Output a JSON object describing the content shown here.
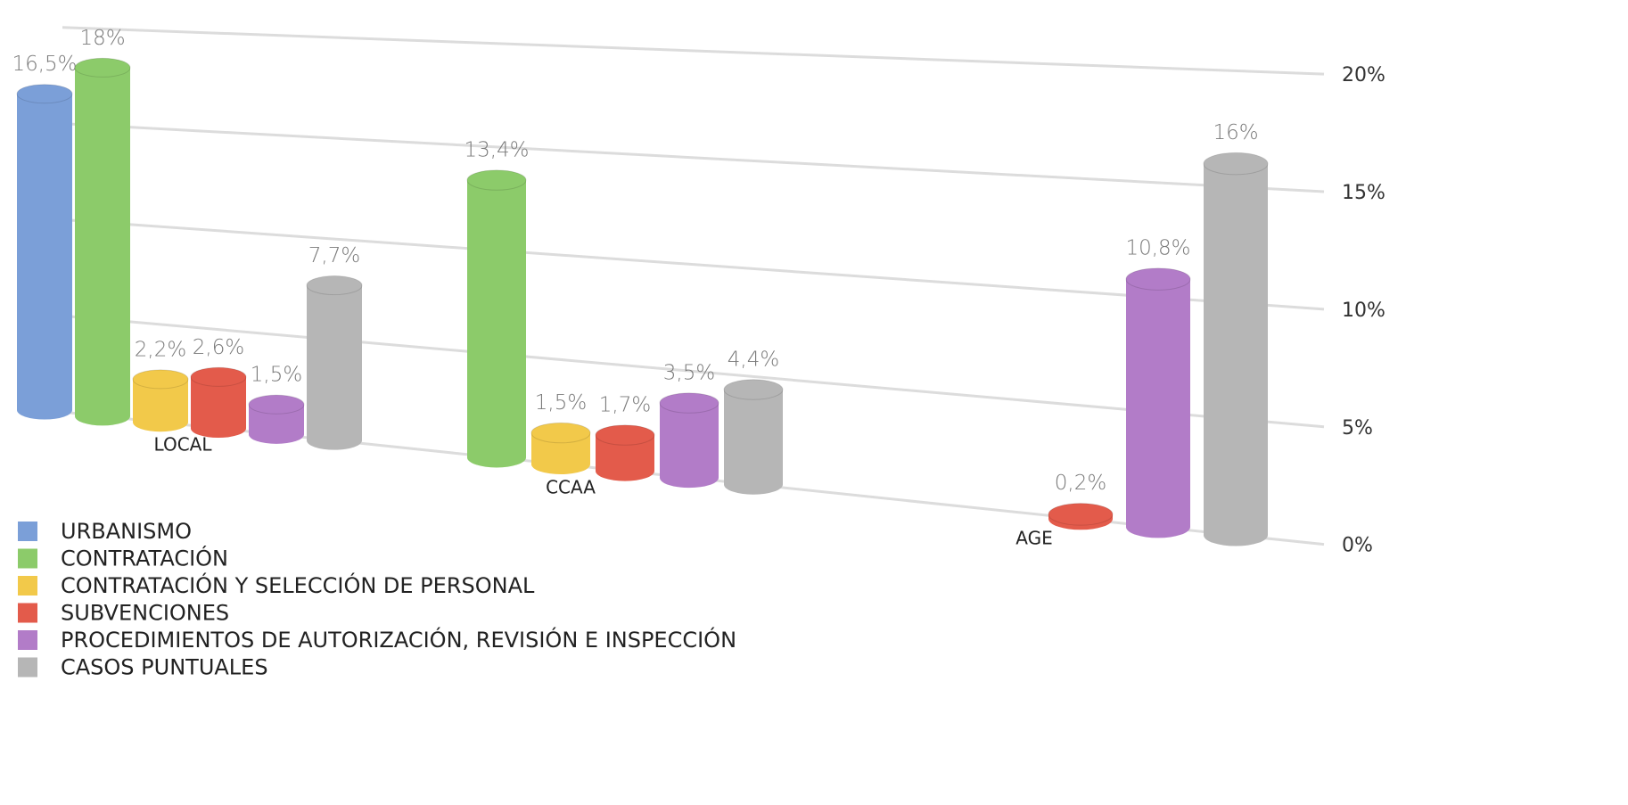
{
  "chart_data": {
    "type": "bar",
    "categories": [
      "LOCAL",
      "CCAA",
      "AGE"
    ],
    "series": [
      {
        "name": "URBANISMO",
        "color": "#7b9fd8",
        "values": [
          16.5,
          null,
          null
        ],
        "value_labels": [
          "16,5%",
          null,
          null
        ]
      },
      {
        "name": "CONTRATACIÓN",
        "color": "#8ccb6a",
        "values": [
          18,
          13.4,
          null
        ],
        "value_labels": [
          "18%",
          "13,4%",
          null
        ]
      },
      {
        "name": "CONTRATACIÓN Y SELECCIÓN DE PERSONAL",
        "color": "#f2c94a",
        "values": [
          2.2,
          1.5,
          null
        ],
        "value_labels": [
          "2,2%",
          "1,5%",
          null
        ]
      },
      {
        "name": "SUBVENCIONES",
        "color": "#e35b4b",
        "values": [
          2.6,
          1.7,
          0.2
        ],
        "value_labels": [
          "2,6%",
          "1,7%",
          "0,2%"
        ]
      },
      {
        "name": "PROCEDIMIENTOS DE AUTORIZACIÓN, REVISIÓN E INSPECCIÓN",
        "color": "#b27cc8",
        "values": [
          1.5,
          3.5,
          10.8
        ],
        "value_labels": [
          "1,5%",
          "3,5%",
          "10,8%"
        ]
      },
      {
        "name": "CASOS PUNTUALES",
        "color": "#b6b6b6",
        "values": [
          7.7,
          4.4,
          16
        ],
        "value_labels": [
          "7,7%",
          "4,4%",
          "16%"
        ]
      }
    ],
    "ylim": [
      0,
      20
    ],
    "yticks": [
      {
        "value": 0,
        "label": "0%"
      },
      {
        "value": 5,
        "label": "5%"
      },
      {
        "value": 10,
        "label": "10%"
      },
      {
        "value": 15,
        "label": "15%"
      },
      {
        "value": 20,
        "label": "20%"
      }
    ],
    "grid": true
  }
}
